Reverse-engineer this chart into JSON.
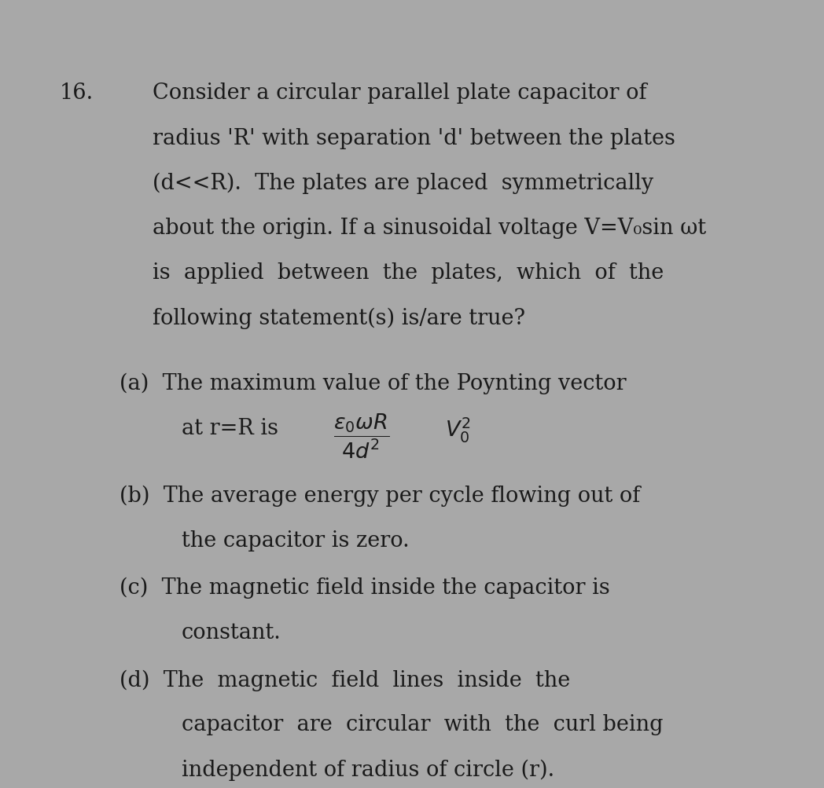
{
  "bg_color": "#a8a8a8",
  "top_bar_color": "#4a4a4a",
  "text_color": "#1a1a1a",
  "figsize": [
    10.48,
    10.04
  ],
  "dpi": 100,
  "question_number": "16.",
  "main_text_lines": [
    "Consider a circular parallel plate capacitor of",
    "radius 'R' with separation 'd' between the plates",
    "(d<<R).  The plates are placed  symmetrically",
    "about the origin. If a sinusoidal voltage V=V₀sin ωt",
    "is  applied  between  the  plates,  which  of  the",
    "following statement(s) is/are true?"
  ],
  "options_a_line1": "(a)  The maximum value of the Poynting vector",
  "options_a_line2_prefix": "at r=R is",
  "options_b_line1": "(b)  The average energy per cycle flowing out of",
  "options_b_line2": "the capacitor is zero.",
  "options_c_line1": "(c)  The magnetic field inside the capacitor is",
  "options_c_line2": "constant.",
  "options_d_line1": "(d)  The  magnetic  field  lines  inside  the",
  "options_d_line2": "capacitor  are  circular  with  the  curl being",
  "options_d_line3": "independent of radius of circle (r)."
}
